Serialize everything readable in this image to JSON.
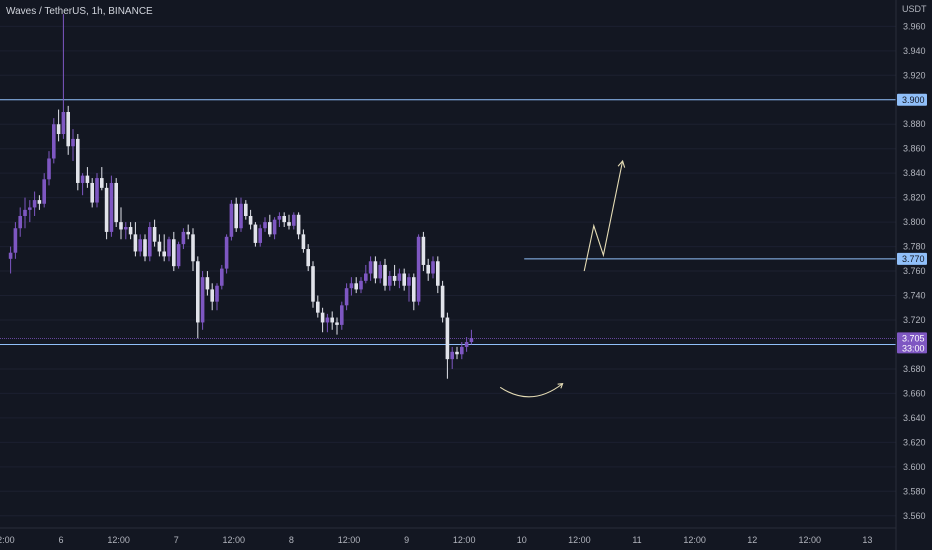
{
  "header": {
    "title": "Waves / TetherUS, 1h, BINANCE"
  },
  "chart_data": {
    "type": "candlestick",
    "title": "Waves / TetherUS, 1h, BINANCE",
    "currency_label": "USDT",
    "ylim": [
      3.55,
      3.975
    ],
    "xlim": [
      0,
      164
    ],
    "y_ticks": [
      "3.960",
      "3.940",
      "3.920",
      "3.900",
      "3.880",
      "3.860",
      "3.840",
      "3.820",
      "3.800",
      "3.780",
      "3.760",
      "3.740",
      "3.720",
      "3.700",
      "3.680",
      "3.660",
      "3.640",
      "3.620",
      "3.600",
      "3.580",
      "3.560"
    ],
    "x_ticks": [
      {
        "label": "12:00",
        "x": -12
      },
      {
        "label": "6",
        "x": 0
      },
      {
        "label": "12:00",
        "x": 12
      },
      {
        "label": "7",
        "x": 24
      },
      {
        "label": "12:00",
        "x": 36
      },
      {
        "label": "8",
        "x": 48
      },
      {
        "label": "12:00",
        "x": 60
      },
      {
        "label": "9",
        "x": 72
      },
      {
        "label": "12:00",
        "x": 84
      },
      {
        "label": "10",
        "x": 96
      },
      {
        "label": "12:00",
        "x": 108
      },
      {
        "label": "11",
        "x": 120
      },
      {
        "label": "12:00",
        "x": 132
      },
      {
        "label": "12",
        "x": 144
      },
      {
        "label": "12:00",
        "x": 156
      },
      {
        "label": "13",
        "x": 168
      }
    ],
    "levels": [
      {
        "price": 3.9,
        "label": "3.900",
        "color": "#90bff9"
      },
      {
        "price": 3.77,
        "label": "3.770",
        "color": "#90bff9",
        "x_start": 96.5
      },
      {
        "price": 3.7,
        "label": "3.700",
        "color": "#90bff9"
      }
    ],
    "current": {
      "price": 3.705,
      "label": "3.705",
      "countdown": "33:00",
      "color": "#7e57c2"
    },
    "drawings": {
      "projection_path": [
        [
          109,
          3.76
        ],
        [
          111,
          3.797
        ],
        [
          113,
          3.773
        ],
        [
          117,
          3.85
        ]
      ],
      "curve": {
        "from": [
          91.5,
          3.665
        ],
        "ctrl": [
          98,
          3.648
        ],
        "to": [
          104.5,
          3.668
        ]
      },
      "color": "#e5dcb5"
    },
    "colors": {
      "up": "#7e57c2",
      "down": "#e1e3ea"
    },
    "candles": [
      [
        3.77,
        3.78,
        3.758,
        3.775
      ],
      [
        3.775,
        3.8,
        3.77,
        3.795
      ],
      [
        3.795,
        3.812,
        3.788,
        3.805
      ],
      [
        3.805,
        3.82,
        3.795,
        3.81
      ],
      [
        3.81,
        3.818,
        3.8,
        3.812
      ],
      [
        3.812,
        3.825,
        3.805,
        3.818
      ],
      [
        3.818,
        3.822,
        3.81,
        3.815
      ],
      [
        3.815,
        3.84,
        3.812,
        3.835
      ],
      [
        3.835,
        3.858,
        3.83,
        3.852
      ],
      [
        3.852,
        3.885,
        3.848,
        3.88
      ],
      [
        3.88,
        3.892,
        3.866,
        3.872
      ],
      [
        3.872,
        3.97,
        3.868,
        3.89
      ],
      [
        3.89,
        3.895,
        3.855,
        3.862
      ],
      [
        3.862,
        3.876,
        3.85,
        3.868
      ],
      [
        3.868,
        3.872,
        3.826,
        3.832
      ],
      [
        3.832,
        3.84,
        3.822,
        3.838
      ],
      [
        3.838,
        3.845,
        3.828,
        3.832
      ],
      [
        3.832,
        3.836,
        3.812,
        3.816
      ],
      [
        3.816,
        3.84,
        3.812,
        3.836
      ],
      [
        3.836,
        3.845,
        3.826,
        3.828
      ],
      [
        3.828,
        3.832,
        3.786,
        3.792
      ],
      [
        3.792,
        3.838,
        3.788,
        3.832
      ],
      [
        3.832,
        3.836,
        3.796,
        3.8
      ],
      [
        3.8,
        3.812,
        3.786,
        3.794
      ],
      [
        3.794,
        3.8,
        3.786,
        3.796
      ],
      [
        3.796,
        3.8,
        3.786,
        3.79
      ],
      [
        3.79,
        3.8,
        3.772,
        3.776
      ],
      [
        3.776,
        3.79,
        3.772,
        3.786
      ],
      [
        3.786,
        3.79,
        3.768,
        3.772
      ],
      [
        3.772,
        3.8,
        3.768,
        3.796
      ],
      [
        3.796,
        3.802,
        3.78,
        3.784
      ],
      [
        3.784,
        3.79,
        3.772,
        3.776
      ],
      [
        3.776,
        3.79,
        3.768,
        3.772
      ],
      [
        3.772,
        3.788,
        3.768,
        3.786
      ],
      [
        3.786,
        3.792,
        3.76,
        3.764
      ],
      [
        3.764,
        3.784,
        3.762,
        3.782
      ],
      [
        3.782,
        3.795,
        3.778,
        3.792
      ],
      [
        3.792,
        3.798,
        3.786,
        3.79
      ],
      [
        3.79,
        3.795,
        3.76,
        3.768
      ],
      [
        3.768,
        3.772,
        3.705,
        3.718
      ],
      [
        3.718,
        3.76,
        3.712,
        3.755
      ],
      [
        3.755,
        3.76,
        3.74,
        3.745
      ],
      [
        3.745,
        3.75,
        3.728,
        3.735
      ],
      [
        3.735,
        3.75,
        3.728,
        3.748
      ],
      [
        3.748,
        3.765,
        3.745,
        3.762
      ],
      [
        3.762,
        3.79,
        3.758,
        3.788
      ],
      [
        3.788,
        3.818,
        3.785,
        3.815
      ],
      [
        3.815,
        3.82,
        3.792,
        3.795
      ],
      [
        3.795,
        3.82,
        3.792,
        3.815
      ],
      [
        3.815,
        3.818,
        3.802,
        3.805
      ],
      [
        3.805,
        3.81,
        3.794,
        3.798
      ],
      [
        3.798,
        3.8,
        3.78,
        3.783
      ],
      [
        3.783,
        3.798,
        3.78,
        3.795
      ],
      [
        3.795,
        3.804,
        3.792,
        3.8
      ],
      [
        3.8,
        3.806,
        3.788,
        3.79
      ],
      [
        3.79,
        3.804,
        3.786,
        3.802
      ],
      [
        3.802,
        3.808,
        3.796,
        3.805
      ],
      [
        3.805,
        3.808,
        3.796,
        3.8
      ],
      [
        3.8,
        3.806,
        3.794,
        3.797
      ],
      [
        3.797,
        3.808,
        3.794,
        3.806
      ],
      [
        3.806,
        3.808,
        3.786,
        3.79
      ],
      [
        3.79,
        3.794,
        3.775,
        3.778
      ],
      [
        3.778,
        3.782,
        3.76,
        3.764
      ],
      [
        3.764,
        3.768,
        3.73,
        3.735
      ],
      [
        3.735,
        3.74,
        3.722,
        3.726
      ],
      [
        3.726,
        3.73,
        3.71,
        3.718
      ],
      [
        3.718,
        3.725,
        3.71,
        3.722
      ],
      [
        3.722,
        3.727,
        3.712,
        3.718
      ],
      [
        3.718,
        3.722,
        3.708,
        3.716
      ],
      [
        3.716,
        3.735,
        3.712,
        3.732
      ],
      [
        3.732,
        3.75,
        3.728,
        3.746
      ],
      [
        3.746,
        3.755,
        3.74,
        3.75
      ],
      [
        3.75,
        3.755,
        3.742,
        3.745
      ],
      [
        3.745,
        3.755,
        3.742,
        3.752
      ],
      [
        3.752,
        3.765,
        3.75,
        3.758
      ],
      [
        3.758,
        3.772,
        3.752,
        3.768
      ],
      [
        3.768,
        3.772,
        3.75,
        3.754
      ],
      [
        3.754,
        3.768,
        3.75,
        3.765
      ],
      [
        3.765,
        3.77,
        3.744,
        3.748
      ],
      [
        3.748,
        3.76,
        3.744,
        3.756
      ],
      [
        3.756,
        3.765,
        3.748,
        3.752
      ],
      [
        3.752,
        3.762,
        3.746,
        3.758
      ],
      [
        3.758,
        3.762,
        3.744,
        3.748
      ],
      [
        3.748,
        3.758,
        3.735,
        3.755
      ],
      [
        3.755,
        3.758,
        3.728,
        3.735
      ],
      [
        3.735,
        3.79,
        3.732,
        3.788
      ],
      [
        3.788,
        3.792,
        3.76,
        3.765
      ],
      [
        3.765,
        3.77,
        3.752,
        3.758
      ],
      [
        3.758,
        3.772,
        3.754,
        3.768
      ],
      [
        3.768,
        3.772,
        3.742,
        3.748
      ],
      [
        3.748,
        3.752,
        3.718,
        3.722
      ],
      [
        3.722,
        3.726,
        3.672,
        3.688
      ],
      [
        3.688,
        3.698,
        3.68,
        3.694
      ],
      [
        3.694,
        3.698,
        3.688,
        3.692
      ],
      [
        3.692,
        3.702,
        3.688,
        3.698
      ],
      [
        3.698,
        3.706,
        3.694,
        3.702
      ],
      [
        3.702,
        3.712,
        3.7,
        3.705
      ]
    ],
    "candle_start_x": -10.5
  }
}
